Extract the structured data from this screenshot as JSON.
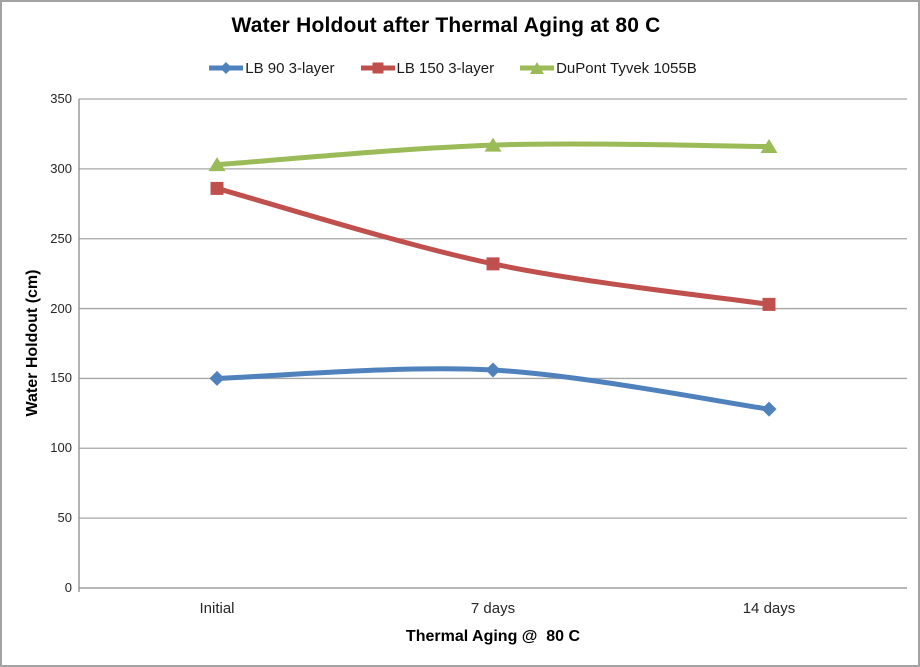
{
  "window": {
    "background": "#ffffff",
    "border_color": "#a3a3a3"
  },
  "chart_data": {
    "type": "line",
    "title": "Water Holdout after Thermal Aging at 80 C",
    "xlabel": "Thermal Aging @  80 C",
    "ylabel": "Water Holdout (cm)",
    "categories": [
      "Initial",
      "7 days",
      "14 days"
    ],
    "series": [
      {
        "name": "LB 90 3-layer",
        "values": [
          150,
          156,
          128
        ],
        "color": "#4F81BD",
        "marker": "diamond"
      },
      {
        "name": "LB 150 3-layer",
        "values": [
          286,
          232,
          203
        ],
        "color": "#C0504D",
        "marker": "square"
      },
      {
        "name": "DuPont Tyvek 1055B",
        "values": [
          303,
          317,
          316
        ],
        "color": "#9BBB59",
        "marker": "triangle"
      }
    ],
    "ylim": [
      0,
      350
    ],
    "yticks": [
      0,
      50,
      100,
      150,
      200,
      250,
      300,
      350
    ],
    "grid": true,
    "smooth_lines": true,
    "legend_position": "top",
    "colors": {
      "gridline": "#a6a6a6",
      "axis": "#8c8c8c",
      "tick_text": "#262626"
    }
  }
}
